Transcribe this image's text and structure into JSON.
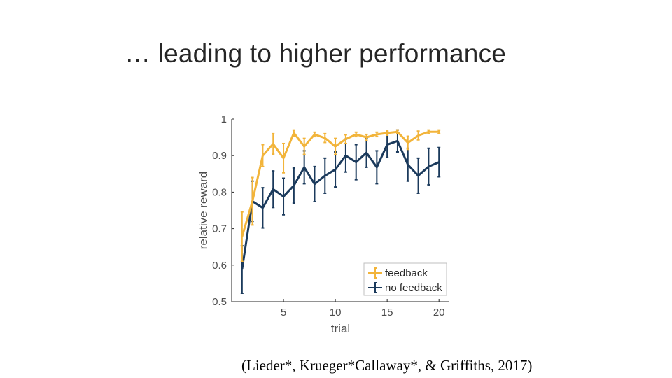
{
  "slide": {
    "title": "… leading to higher performance",
    "citation": "(Lieder*, Krueger*Callaway*, & Griffiths, 2017)"
  },
  "chart_data": {
    "type": "line",
    "xlabel": "trial",
    "ylabel": "relative reward",
    "xlim": [
      0,
      21
    ],
    "ylim": [
      0.5,
      1.0
    ],
    "xticks": [
      5,
      10,
      15,
      20
    ],
    "yticks": [
      0.5,
      0.6,
      0.7,
      0.8,
      0.9,
      1
    ],
    "ytick_labels": [
      "0.5",
      "0.6",
      "0.7",
      "0.8",
      "0.9",
      "1"
    ],
    "xtick_labels": [
      "5",
      "10",
      "15",
      "20"
    ],
    "grid": false,
    "error_bars": true,
    "legend_position": "bottom-right",
    "x": [
      1,
      2,
      3,
      4,
      5,
      6,
      7,
      8,
      9,
      10,
      11,
      12,
      13,
      14,
      15,
      16,
      17,
      18,
      19,
      20
    ],
    "series": [
      {
        "name": "feedback",
        "color": "#f2b43a",
        "values": [
          0.678,
          0.775,
          0.9,
          0.932,
          0.893,
          0.962,
          0.925,
          0.958,
          0.948,
          0.925,
          0.945,
          0.958,
          0.95,
          0.958,
          0.962,
          0.965,
          0.935,
          0.955,
          0.965,
          0.965
        ],
        "errors": [
          0.068,
          0.065,
          0.03,
          0.028,
          0.04,
          0.008,
          0.022,
          0.006,
          0.012,
          0.022,
          0.012,
          0.006,
          0.008,
          0.006,
          0.006,
          0.005,
          0.018,
          0.012,
          0.005,
          0.005
        ]
      },
      {
        "name": "no feedback",
        "color": "#1b3a5c",
        "values": [
          0.588,
          0.775,
          0.757,
          0.808,
          0.788,
          0.818,
          0.868,
          0.822,
          0.845,
          0.862,
          0.9,
          0.882,
          0.908,
          0.868,
          0.93,
          0.94,
          0.875,
          0.845,
          0.87,
          0.882
        ],
        "errors": [
          0.065,
          0.055,
          0.055,
          0.05,
          0.05,
          0.048,
          0.045,
          0.048,
          0.048,
          0.048,
          0.045,
          0.048,
          0.04,
          0.045,
          0.035,
          0.03,
          0.045,
          0.048,
          0.05,
          0.04
        ]
      }
    ]
  }
}
